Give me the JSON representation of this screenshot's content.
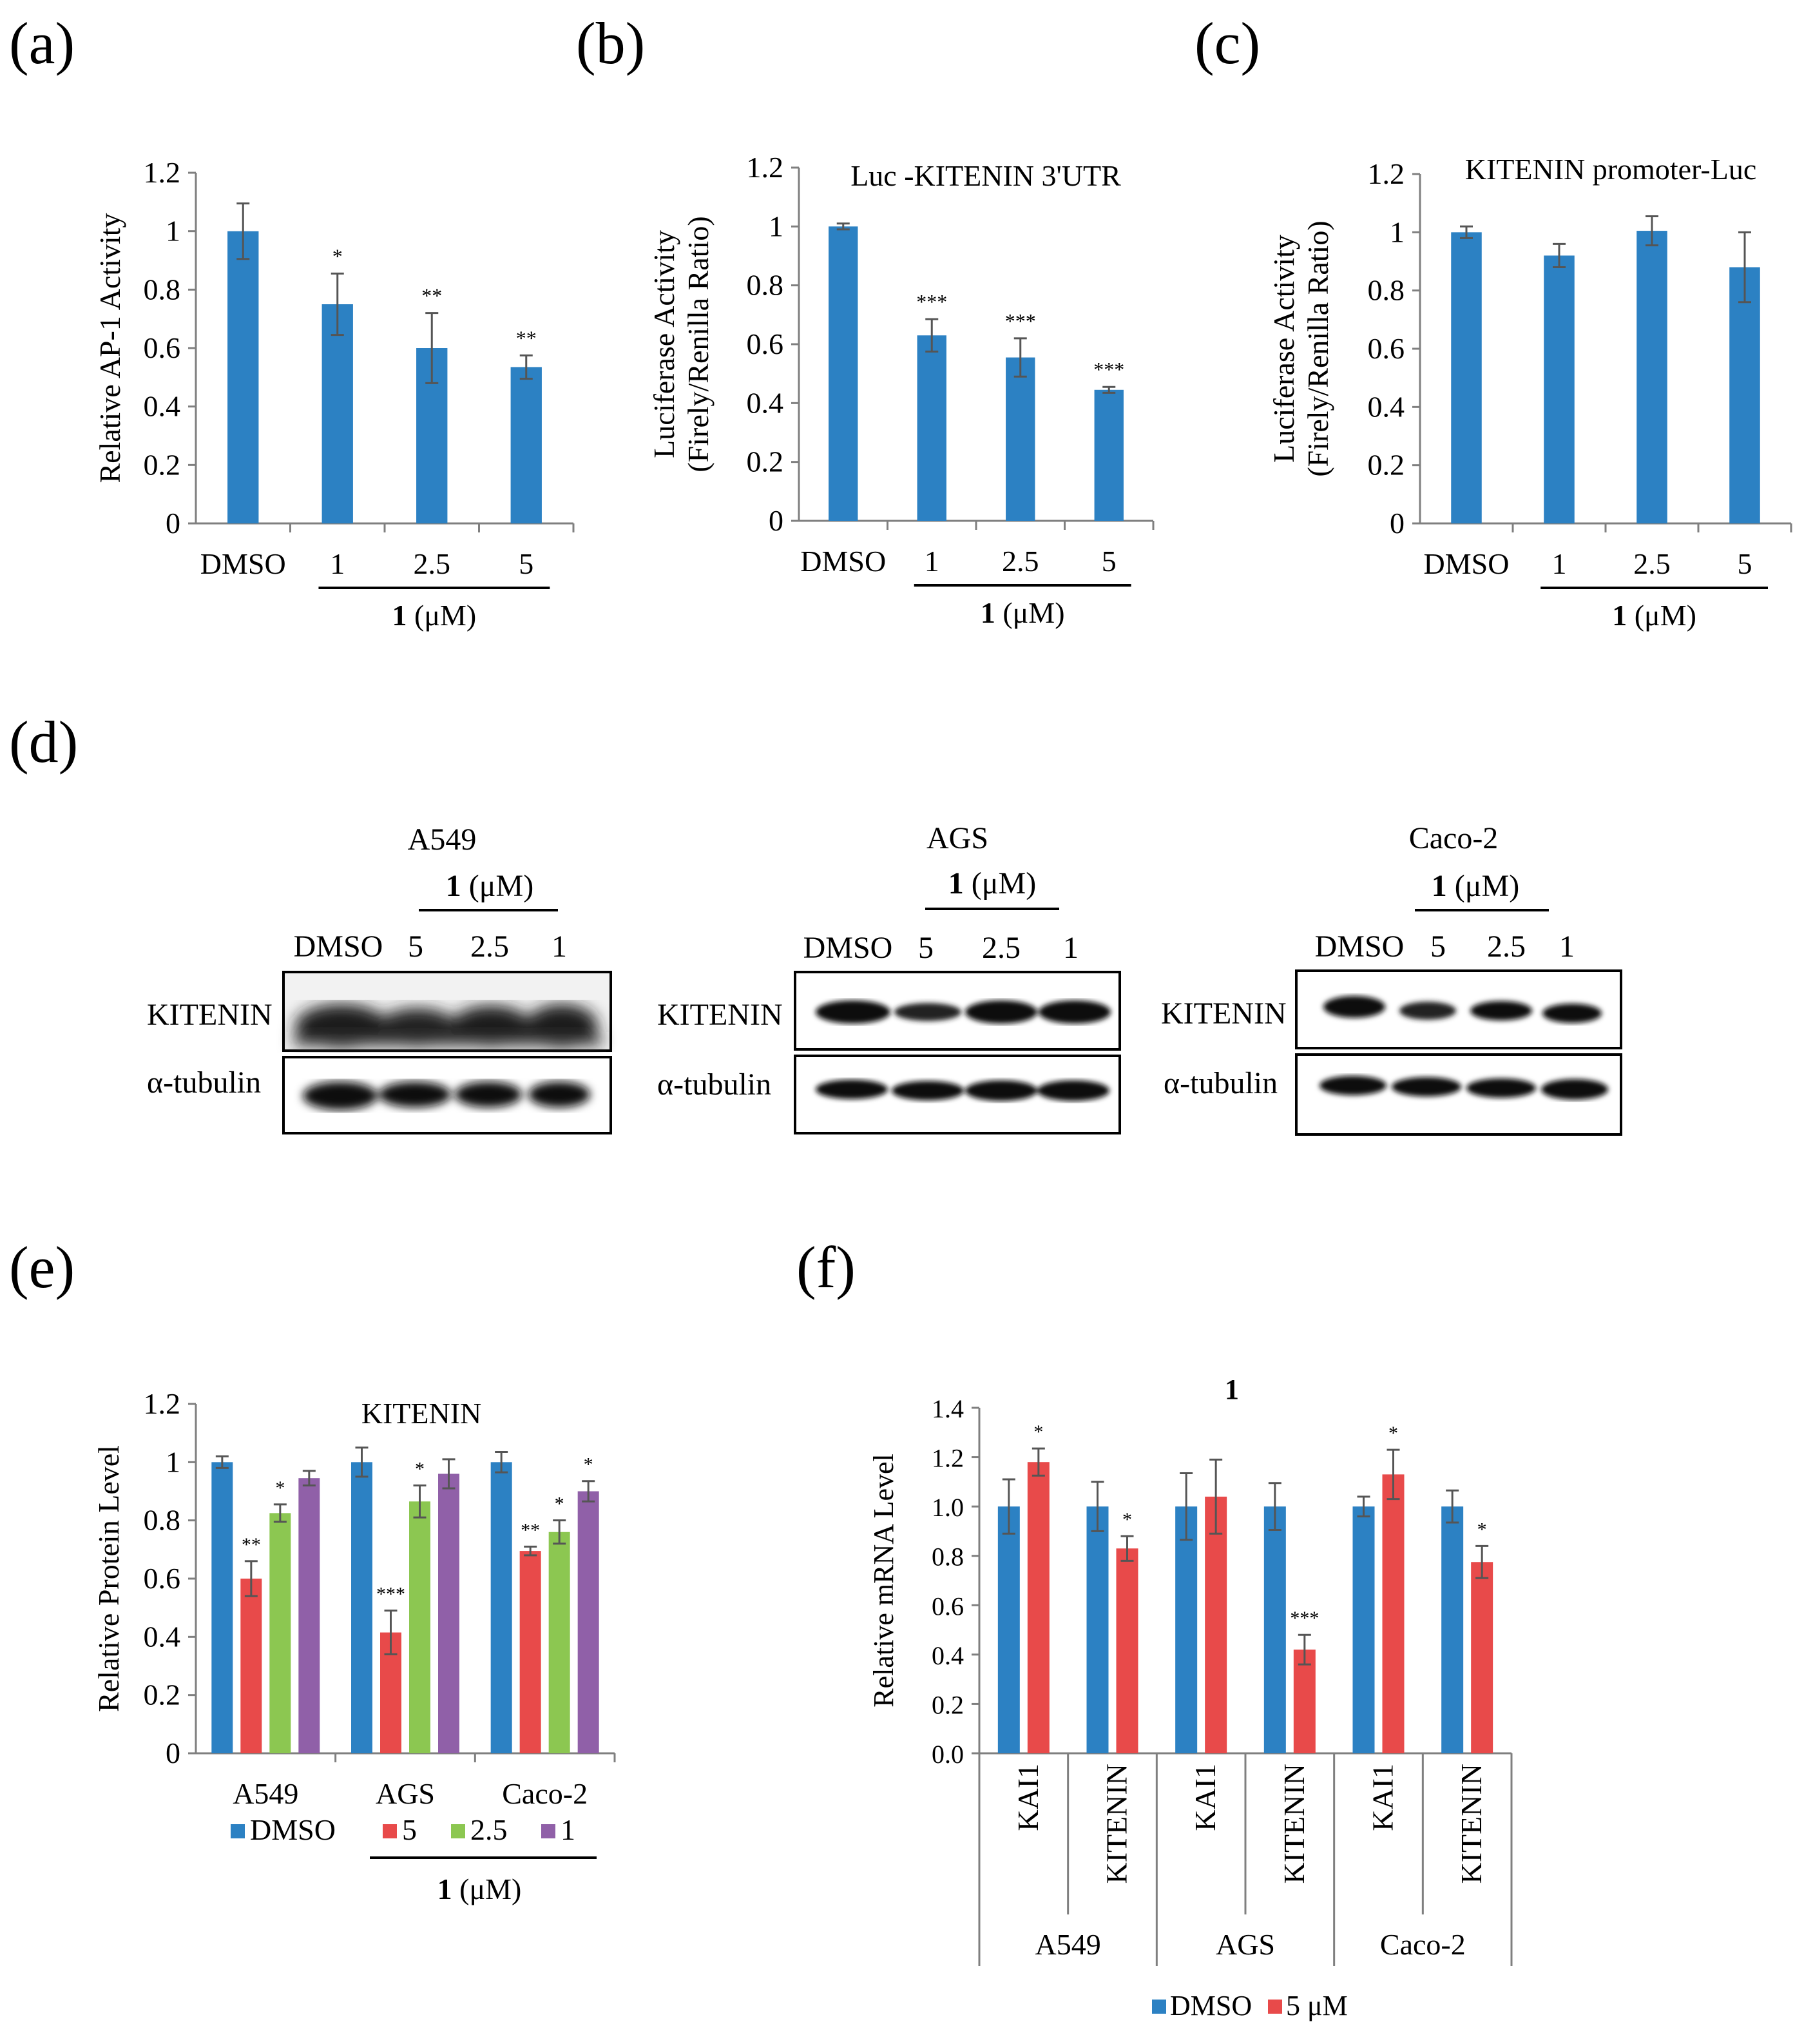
{
  "colors": {
    "dmso": "#2c81c3",
    "c5": "#e84a4a",
    "c25": "#8cc751",
    "c1": "#9060a8",
    "axis": "#7f7f7f",
    "err": "#555555"
  },
  "panels": {
    "a": "(a)",
    "b": "(b)",
    "c": "(c)",
    "d": "(d)",
    "e": "(e)",
    "f": "(f)"
  },
  "conc_label": {
    "bold": "1",
    "unit": " (μM)"
  },
  "chart_data": [
    {
      "id": "a",
      "type": "bar",
      "title": "",
      "ylabel": "Relative AP-1 Activity",
      "ylim": [
        0,
        1.2
      ],
      "yticks": [
        "0",
        "0.2",
        "0.4",
        "0.6",
        "0.8",
        "1",
        "1.2"
      ],
      "categories": [
        "DMSO",
        "1",
        "2.5",
        "5"
      ],
      "values": [
        1.0,
        0.75,
        0.6,
        0.535
      ],
      "errors": [
        0.095,
        0.105,
        0.12,
        0.04
      ],
      "sig": [
        "",
        "*",
        "**",
        "**"
      ]
    },
    {
      "id": "b",
      "type": "bar",
      "title": "Luc -KITENIN 3'UTR",
      "ylabel": [
        "Luciferase Activity",
        "(Firely/Renilla Ratio)"
      ],
      "ylim": [
        0,
        1.2
      ],
      "yticks": [
        "0",
        "0.2",
        "0.4",
        "0.6",
        "0.8",
        "1",
        "1.2"
      ],
      "categories": [
        "DMSO",
        "1",
        "2.5",
        "5"
      ],
      "values": [
        1.0,
        0.63,
        0.555,
        0.445
      ],
      "errors": [
        0.01,
        0.055,
        0.065,
        0.01
      ],
      "sig": [
        "",
        "***",
        "***",
        "***"
      ]
    },
    {
      "id": "c",
      "type": "bar",
      "title": "KITENIN promoter-Luc",
      "ylabel": [
        "Luciferase Activity",
        "(Firely/Renilla Ratio)"
      ],
      "ylim": [
        0,
        1.2
      ],
      "yticks": [
        "0",
        "0.2",
        "0.4",
        "0.6",
        "0.8",
        "1",
        "1.2"
      ],
      "categories": [
        "DMSO",
        "1",
        "2.5",
        "5"
      ],
      "values": [
        1.0,
        0.92,
        1.005,
        0.88
      ],
      "errors": [
        0.02,
        0.04,
        0.05,
        0.12
      ],
      "sig": [
        "",
        "",
        "",
        ""
      ]
    },
    {
      "id": "e",
      "type": "bar",
      "title": "KITENIN",
      "ylabel": "Relative Protein Level",
      "ylim": [
        0,
        1.2
      ],
      "yticks": [
        "0",
        "0.2",
        "0.4",
        "0.6",
        "0.8",
        "1",
        "1.2"
      ],
      "categories": [
        "A549",
        "AGS",
        "Caco-2"
      ],
      "series": [
        {
          "name": "DMSO",
          "values": [
            1.0,
            1.0,
            1.0
          ],
          "errors": [
            0.02,
            0.05,
            0.035
          ],
          "sig": [
            "",
            "",
            ""
          ]
        },
        {
          "name": "5",
          "values": [
            0.6,
            0.415,
            0.695
          ],
          "errors": [
            0.06,
            0.075,
            0.015
          ],
          "sig": [
            "**",
            "***",
            "**"
          ]
        },
        {
          "name": "2.5",
          "values": [
            0.825,
            0.865,
            0.76
          ],
          "errors": [
            0.03,
            0.055,
            0.04
          ],
          "sig": [
            "*",
            "*",
            "*"
          ]
        },
        {
          "name": "1",
          "values": [
            0.945,
            0.96,
            0.9
          ],
          "errors": [
            0.025,
            0.05,
            0.035
          ],
          "sig": [
            "",
            "",
            "*"
          ]
        }
      ]
    },
    {
      "id": "f",
      "type": "bar",
      "title": "1",
      "ylabel": "Relative mRNA Level",
      "ylim": [
        0,
        1.4
      ],
      "yticks": [
        "0.0",
        "0.2",
        "0.4",
        "0.6",
        "0.8",
        "1.0",
        "1.2",
        "1.4"
      ],
      "categories": [
        "KAI1",
        "KITENIN",
        "KAI1",
        "KITENIN",
        "KAI1",
        "KITENIN"
      ],
      "groups": [
        "A549",
        "AGS",
        "Caco-2"
      ],
      "series": [
        {
          "name": "DMSO",
          "values": [
            1.0,
            1.0,
            1.0,
            1.0,
            1.0,
            1.0
          ],
          "errors": [
            0.11,
            0.1,
            0.135,
            0.095,
            0.04,
            0.065
          ],
          "sig": [
            "",
            "",
            "",
            "",
            "",
            ""
          ]
        },
        {
          "name": "5 μM",
          "values": [
            1.18,
            0.83,
            1.04,
            0.42,
            1.13,
            0.775
          ],
          "errors": [
            0.055,
            0.05,
            0.15,
            0.06,
            0.1,
            0.065
          ],
          "sig": [
            "*",
            "*",
            "",
            "***",
            "*",
            "*"
          ]
        }
      ]
    }
  ],
  "blots": {
    "header": [
      "DMSO",
      "5",
      "2.5",
      "1"
    ],
    "row1": "KITENIN",
    "row2": "α-tubulin",
    "cells": [
      "A549",
      "AGS",
      "Caco-2"
    ]
  }
}
